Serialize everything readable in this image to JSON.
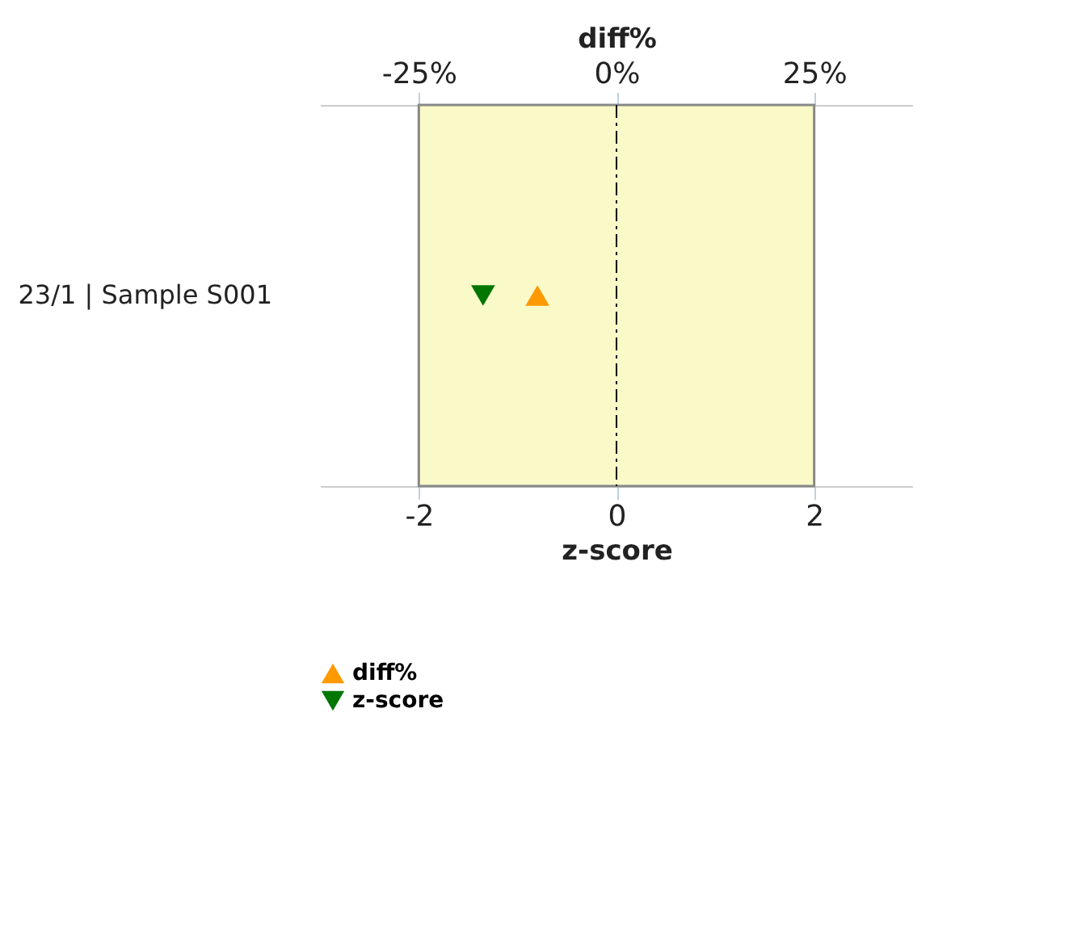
{
  "chart_data": {
    "type": "scatter",
    "orientation": "horizontal",
    "categories": [
      "23/1 | Sample S001"
    ],
    "xlabel": "z-score",
    "x2label": "diff%",
    "xlim": [
      -3,
      3
    ],
    "xticks": [
      -2,
      0,
      2
    ],
    "x2lim": [
      -37.5,
      37.5
    ],
    "x2ticks": [
      {
        "value": -25,
        "label": "-25%"
      },
      {
        "value": 0,
        "label": "0%"
      },
      {
        "value": 25,
        "label": "25%"
      }
    ],
    "series": [
      {
        "name": "diff%",
        "color": "#ff9900",
        "marker": "triangle",
        "axis": "x2",
        "values": [
          -10
        ]
      },
      {
        "name": "z-score",
        "color": "#007700",
        "marker": "triangle-down",
        "values": [
          -1.35
        ]
      }
    ],
    "bands": [
      {
        "axis": "x",
        "from": -2,
        "to": 2,
        "color": "#fafac8"
      }
    ],
    "ref_lines": [
      {
        "axis": "x",
        "value": 0,
        "color": "#000000",
        "line_style": "dashdot"
      }
    ],
    "legend": "bottom",
    "grid": false
  }
}
